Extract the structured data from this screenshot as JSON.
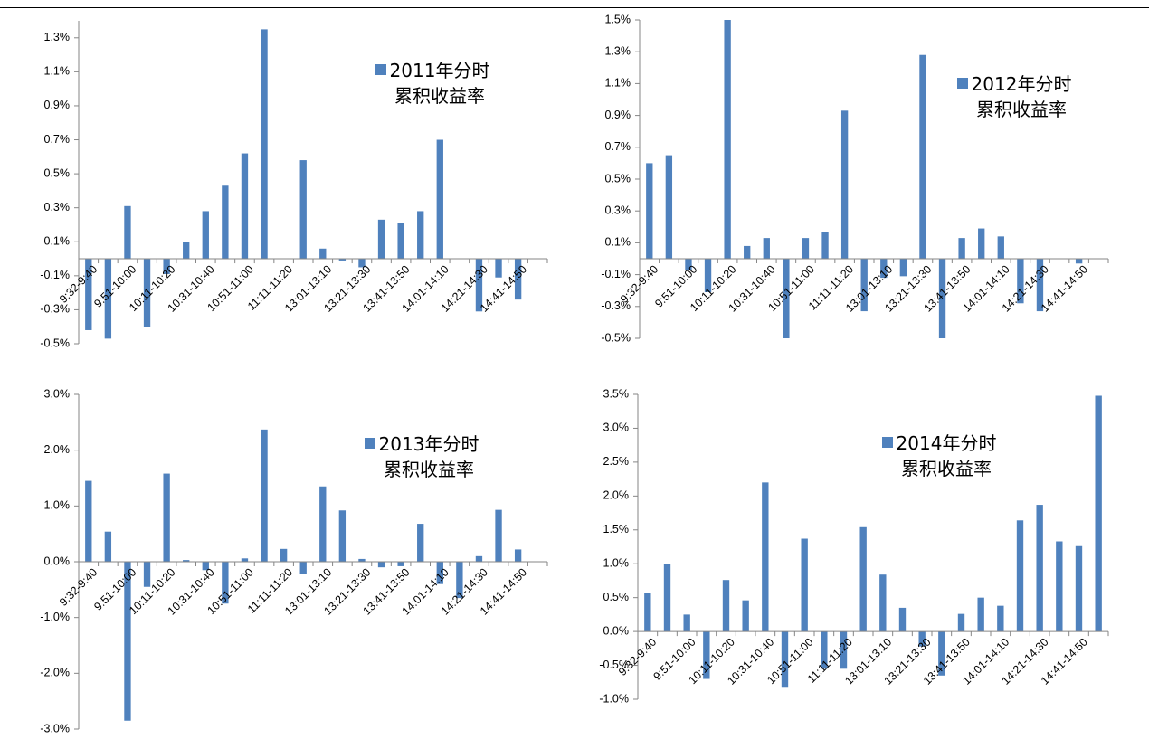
{
  "chart_data": [
    {
      "type": "bar",
      "categories": [
        "9:32-9:40",
        null,
        "9:51-10:00",
        null,
        "10:11-10:20",
        null,
        "10:31-10:40",
        null,
        "10:51-11:00",
        null,
        "11:11-11:20",
        null,
        "13:01-13:10",
        null,
        "13:21-13:30",
        null,
        "13:41-13:50",
        null,
        "14:01-14:10",
        null,
        "14:21-14:30",
        null,
        "14:41-14:50",
        null
      ],
      "series": [
        {
          "name": "2011年分时累积收益率",
          "color": "#4f81bd",
          "values": [
            -0.42,
            -0.47,
            0.31,
            -0.4,
            -0.09,
            0.1,
            0.28,
            0.43,
            0.62,
            1.35,
            0,
            0.58,
            0.06,
            -0.01,
            -0.05,
            0.23,
            0.21,
            0.28,
            0.7,
            0,
            -0.31,
            -0.11,
            -0.24,
            0
          ]
        }
      ],
      "ylim": [
        -0.5,
        1.4
      ],
      "yticks": [
        {
          "value": -0.5,
          "label": "-0.5%"
        },
        {
          "value": -0.3,
          "label": "-0.3%"
        },
        {
          "value": -0.1,
          "label": "-0.1%"
        },
        {
          "value": 0.1,
          "label": "0.1%"
        },
        {
          "value": 0.3,
          "label": "0.3%"
        },
        {
          "value": 0.5,
          "label": "0.5%"
        },
        {
          "value": 0.7,
          "label": "0.7%"
        },
        {
          "value": 0.9,
          "label": "0.9%"
        },
        {
          "value": 1.1,
          "label": "1.1%"
        },
        {
          "value": 1.3,
          "label": "1.3%"
        }
      ],
      "grid": false
    },
    {
      "type": "bar",
      "categories": [
        "9:32-9:40",
        null,
        "9:51-10:00",
        null,
        "10:11-10:20",
        null,
        "10:31-10:40",
        null,
        "10:51-11:00",
        null,
        "11:11-11:20",
        null,
        "13:01-13:10",
        null,
        "13:21-13:30",
        null,
        "13:41-13:50",
        null,
        "14:01-14:10",
        null,
        "14:21-14:30",
        null,
        "14:41-14:50",
        null
      ],
      "series": [
        {
          "name": "2012年分时累积收益率",
          "color": "#4f81bd",
          "values": [
            0.6,
            0.65,
            -0.07,
            -0.21,
            1.5,
            0.08,
            0.13,
            -0.5,
            0.13,
            0.17,
            0.93,
            -0.33,
            -0.12,
            -0.11,
            1.28,
            -0.5,
            0.13,
            0.19,
            0.14,
            -0.28,
            -0.33,
            0,
            -0.03,
            0
          ]
        }
      ],
      "ylim": [
        -0.5,
        1.5
      ],
      "yticks": [
        {
          "value": -0.5,
          "label": "-0.5%"
        },
        {
          "value": -0.3,
          "label": "-0.3%"
        },
        {
          "value": -0.1,
          "label": "-0.1%"
        },
        {
          "value": 0.1,
          "label": "0.1%"
        },
        {
          "value": 0.3,
          "label": "0.3%"
        },
        {
          "value": 0.5,
          "label": "0.5%"
        },
        {
          "value": 0.7,
          "label": "0.7%"
        },
        {
          "value": 0.9,
          "label": "0.9%"
        },
        {
          "value": 1.1,
          "label": "1.1%"
        },
        {
          "value": 1.3,
          "label": "1.3%"
        },
        {
          "value": 1.5,
          "label": "1.5%"
        }
      ],
      "grid": false
    },
    {
      "type": "bar",
      "categories": [
        "9:32-9:40",
        null,
        "9:51-10:00",
        null,
        "10:11-10:20",
        null,
        "10:31-10:40",
        null,
        "10:51-11:00",
        null,
        "11:11-11:20",
        null,
        "13:01-13:10",
        null,
        "13:21-13:30",
        null,
        "13:41-13:50",
        null,
        "14:01-14:10",
        null,
        "14:21-14:30",
        null,
        "14:41-14:50",
        null
      ],
      "series": [
        {
          "name": "2013年分时累积收益率",
          "color": "#4f81bd",
          "values": [
            1.45,
            0.54,
            -2.85,
            -0.45,
            1.58,
            0.03,
            -0.15,
            -0.75,
            0.06,
            2.37,
            0.23,
            -0.22,
            1.35,
            0.92,
            0.05,
            -0.1,
            -0.08,
            0.68,
            -0.4,
            -0.65,
            0.1,
            0.93,
            0.22,
            0
          ]
        }
      ],
      "ylim": [
        -3,
        3
      ],
      "yticks": [
        {
          "value": -3,
          "label": "-3.0%"
        },
        {
          "value": -2,
          "label": "-2.0%"
        },
        {
          "value": -1,
          "label": "-1.0%"
        },
        {
          "value": 0,
          "label": "0.0%"
        },
        {
          "value": 1,
          "label": "1.0%"
        },
        {
          "value": 2,
          "label": "2.0%"
        },
        {
          "value": 3,
          "label": "3.0%"
        }
      ],
      "grid": false
    },
    {
      "type": "bar",
      "categories": [
        "9:32-9:40",
        null,
        "9:51-10:00",
        null,
        "10:11-10:20",
        null,
        "10:31-10:40",
        null,
        "10:51-11:00",
        null,
        "11:11-11:20",
        null,
        "13:01-13:10",
        null,
        "13:21-13:30",
        null,
        "13:41-13:50",
        null,
        "14:01-14:10",
        null,
        "14:21-14:30",
        null,
        "14:41-14:50",
        null
      ],
      "series": [
        {
          "name": "2014年分时累积收益率",
          "color": "#4f81bd",
          "values": [
            0.57,
            1.0,
            0.25,
            -0.7,
            0.76,
            0.46,
            2.2,
            -0.83,
            1.37,
            -0.55,
            -0.55,
            1.54,
            0.84,
            0.35,
            -0.22,
            -0.65,
            0.26,
            0.5,
            0.38,
            1.64,
            1.87,
            1.33,
            1.26,
            3.48
          ]
        }
      ],
      "ylim": [
        -1,
        3.5
      ],
      "yticks": [
        {
          "value": -1,
          "label": "-1.0%"
        },
        {
          "value": -0.5,
          "label": "-0.5%"
        },
        {
          "value": 0,
          "label": "0.0%"
        },
        {
          "value": 0.5,
          "label": "0.5%"
        },
        {
          "value": 1,
          "label": "1.0%"
        },
        {
          "value": 1.5,
          "label": "1.5%"
        },
        {
          "value": 2,
          "label": "2.0%"
        },
        {
          "value": 2.5,
          "label": "2.5%"
        },
        {
          "value": 3,
          "label": "3.0%"
        },
        {
          "value": 3.5,
          "label": "3.5%"
        }
      ],
      "grid": false
    }
  ]
}
